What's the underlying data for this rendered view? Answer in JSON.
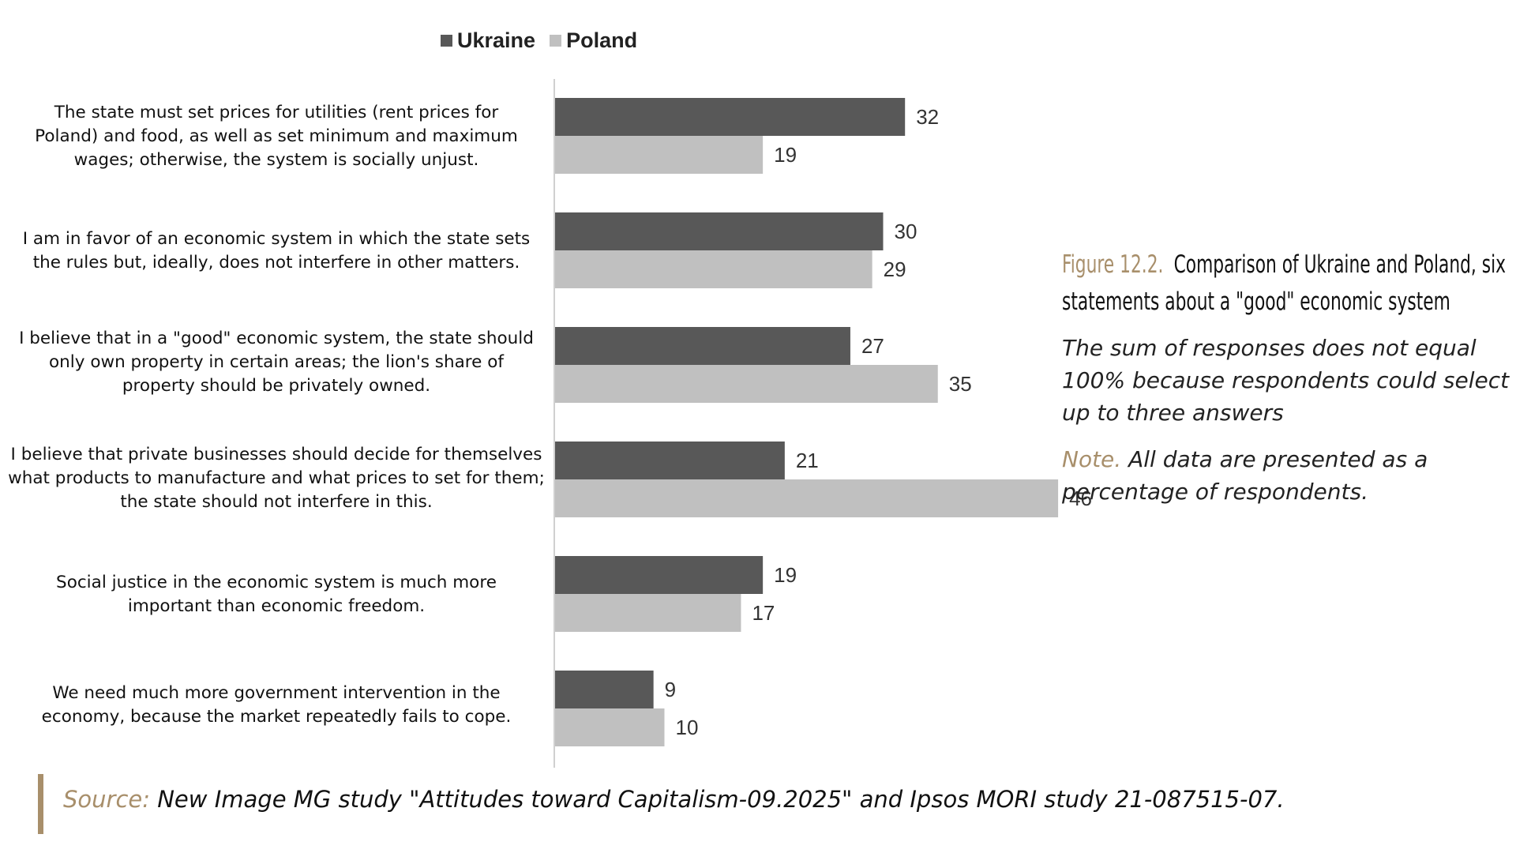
{
  "legend": {
    "ukraine": "Ukraine",
    "poland": "Poland"
  },
  "colors": {
    "ukraine": "#585858",
    "poland": "#c0c0c0",
    "accent": "#a88f6b",
    "axis": "#d0d0d0"
  },
  "caption": {
    "figure_number": "Figure 12.2.",
    "title": "Comparison of Ukraine and Poland, six statements about a \"good\" economic system",
    "subtitle": "The sum of responses does not equal 100% because respondents could select up to three answers",
    "note_label": "Note.",
    "note_text": "All data are presented as a percentage of respondents."
  },
  "source": {
    "label": "Source:",
    "text": "New Image MG study \"Attitudes toward Capitalism-09.2025\" and Ipsos MORI study 21-087515-07."
  },
  "chart_data": {
    "type": "bar",
    "orientation": "horizontal",
    "categories": [
      "The state must set prices for utilities (rent prices for Poland) and food, as well as set minimum and maximum wages; otherwise, the system is socially unjust.",
      "I am in favor of an economic system in which the state sets the rules but, ideally, does not interfere in other matters.",
      "I believe that in a \"good\" economic system, the state should only own property in certain areas; the lion's share of property should be privately owned.",
      "I believe that private businesses should decide for themselves what products to manufacture and what prices to set for them; the state should not interfere in this.",
      "Social justice in the economic system is much more important than economic freedom.",
      "We need much more government intervention in the economy, because the market repeatedly fails to cope."
    ],
    "series": [
      {
        "name": "Ukraine",
        "values": [
          32,
          30,
          27,
          21,
          19,
          9
        ]
      },
      {
        "name": "Poland",
        "values": [
          19,
          29,
          35,
          46,
          17,
          10
        ]
      }
    ],
    "xlim": [
      0,
      50
    ],
    "legend_position": "top",
    "grid": false,
    "unit": "percent of respondents"
  }
}
